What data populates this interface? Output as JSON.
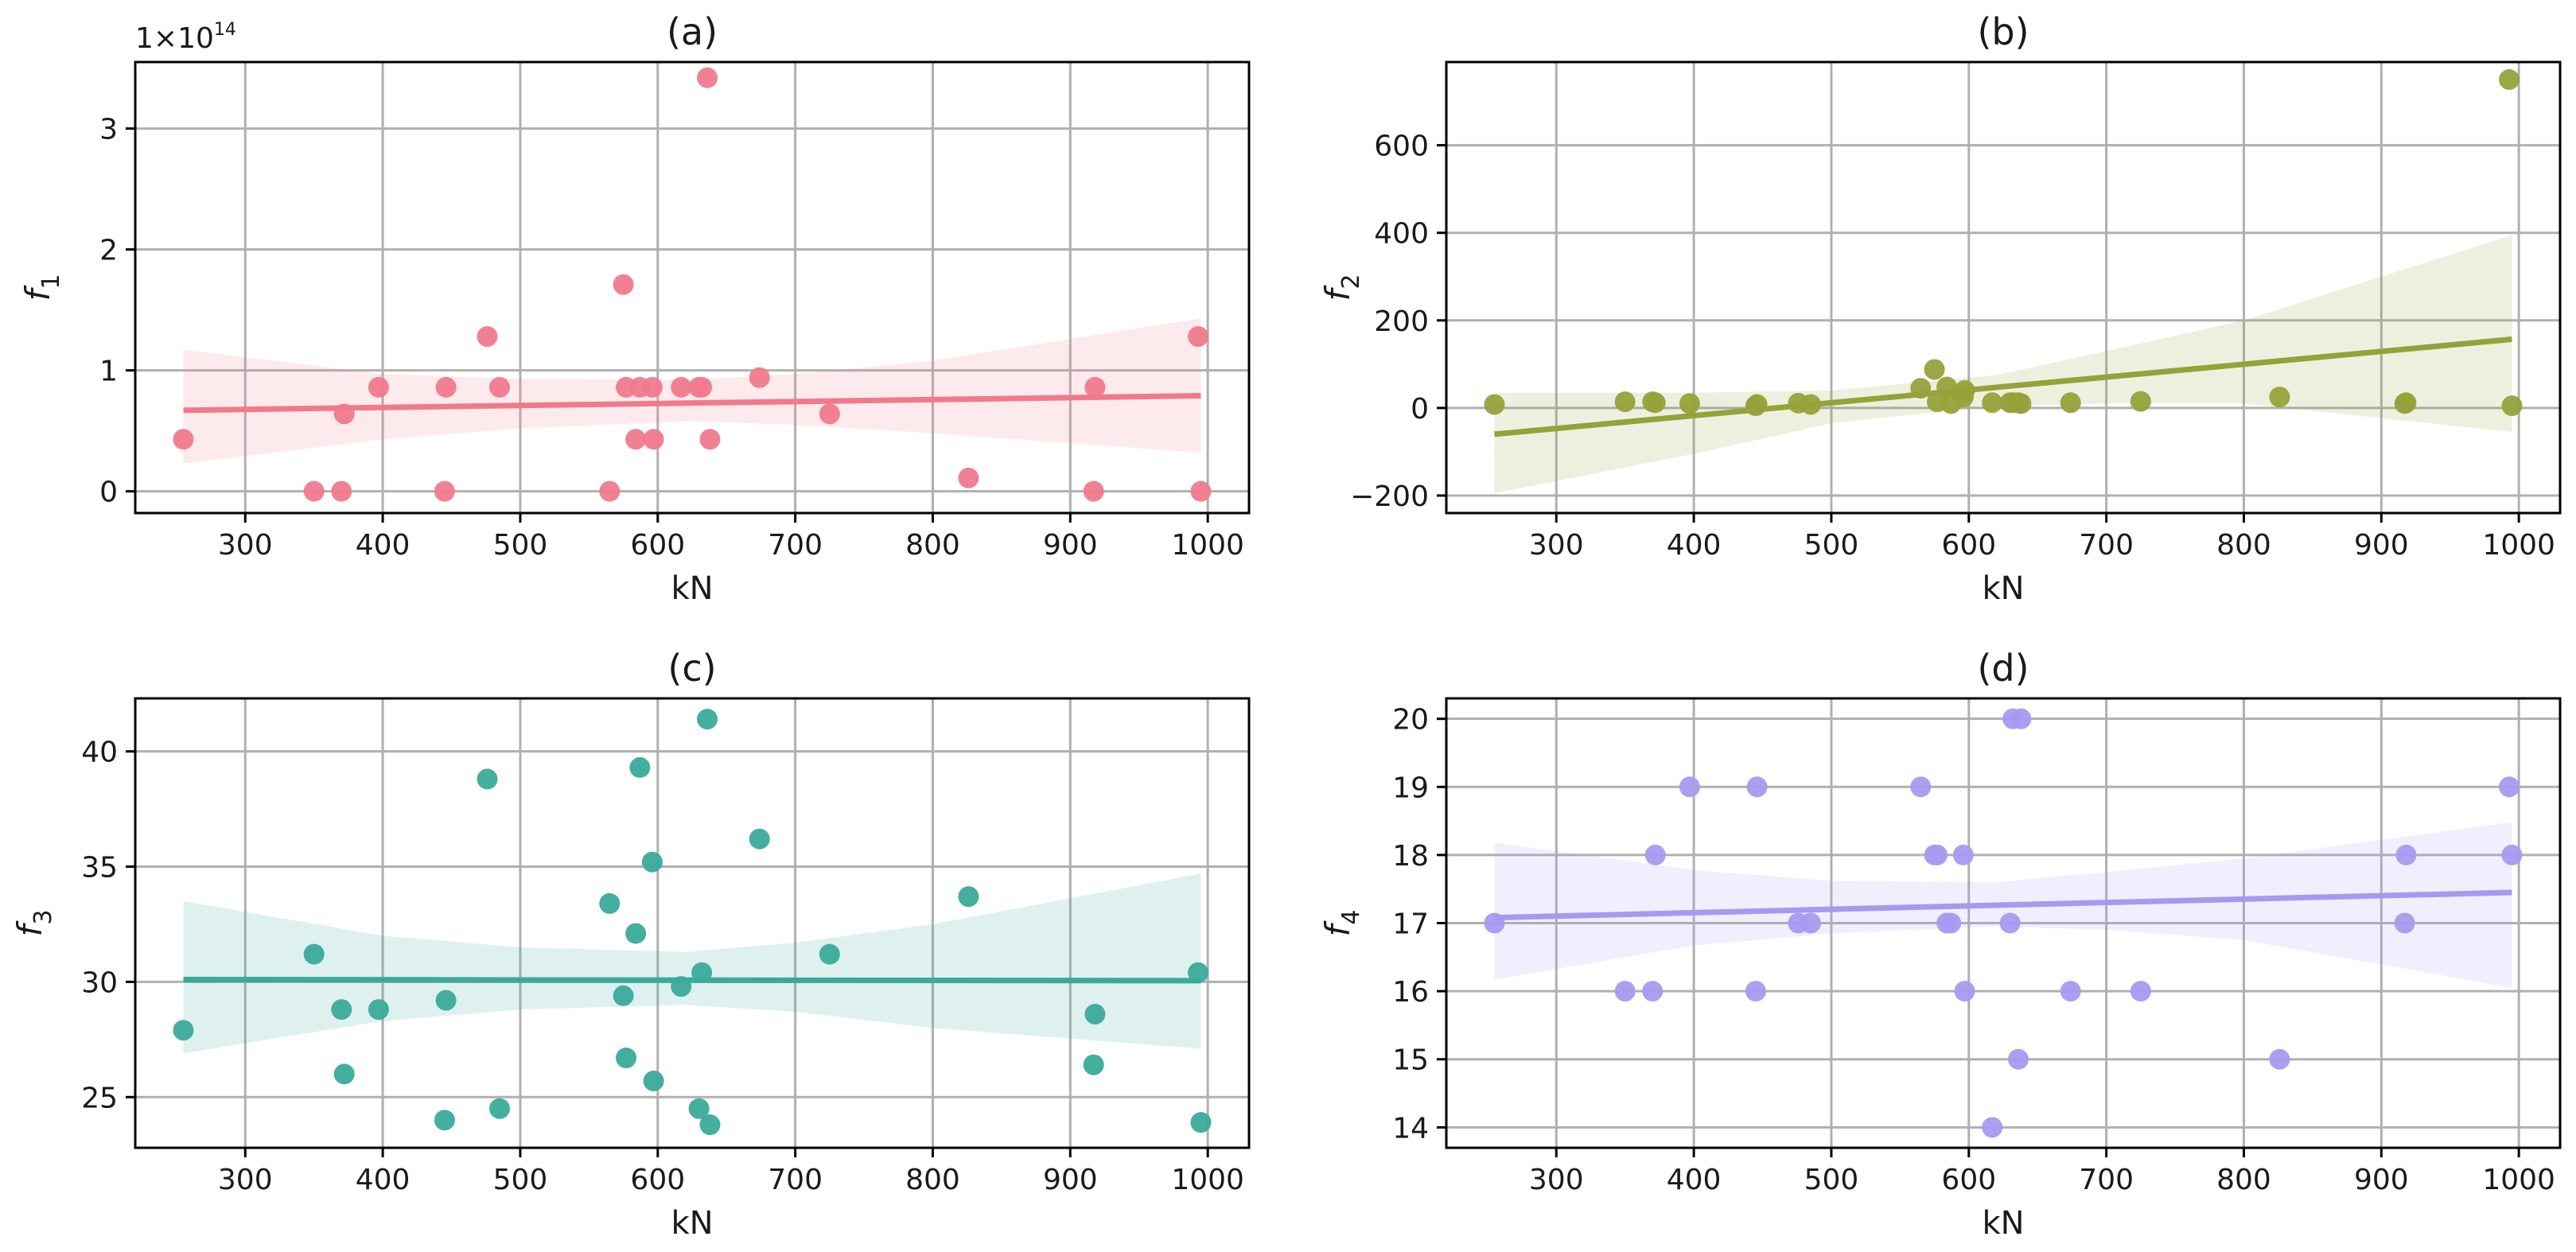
{
  "chart_data": [
    {
      "type": "scatter",
      "title": "(a)",
      "xlabel": "kN",
      "ylabel_var": "f",
      "ylabel_sub": "1",
      "offset_text": "1×10",
      "offset_exp": "14",
      "xlim": [
        220,
        1030
      ],
      "ylim": [
        -0.18,
        3.55
      ],
      "xticks": [
        300,
        400,
        500,
        600,
        700,
        800,
        900,
        1000
      ],
      "yticks": [
        0,
        1,
        2,
        3
      ],
      "color": "#f07a8c",
      "fit": {
        "x": [
          255,
          995
        ],
        "y": [
          0.67,
          0.79
        ]
      },
      "band": {
        "x": [
          255,
          400,
          500,
          620,
          700,
          800,
          995
        ],
        "upper": [
          1.17,
          0.97,
          0.93,
          0.92,
          0.97,
          1.08,
          1.43
        ],
        "lower": [
          0.23,
          0.43,
          0.52,
          0.58,
          0.55,
          0.48,
          0.32
        ]
      },
      "points": [
        {
          "x": 255,
          "y": 0.43
        },
        {
          "x": 350,
          "y": 0.0
        },
        {
          "x": 370,
          "y": 0.0
        },
        {
          "x": 372,
          "y": 0.64
        },
        {
          "x": 397,
          "y": 0.86
        },
        {
          "x": 445,
          "y": 0.0
        },
        {
          "x": 446,
          "y": 0.86
        },
        {
          "x": 476,
          "y": 1.28
        },
        {
          "x": 485,
          "y": 0.86
        },
        {
          "x": 565,
          "y": 0.0
        },
        {
          "x": 575,
          "y": 1.71
        },
        {
          "x": 577,
          "y": 0.86
        },
        {
          "x": 584,
          "y": 0.43
        },
        {
          "x": 587,
          "y": 0.86
        },
        {
          "x": 596,
          "y": 0.86
        },
        {
          "x": 597,
          "y": 0.43
        },
        {
          "x": 617,
          "y": 0.86
        },
        {
          "x": 630,
          "y": 0.86
        },
        {
          "x": 632,
          "y": 0.86
        },
        {
          "x": 636,
          "y": 3.42
        },
        {
          "x": 638,
          "y": 0.43
        },
        {
          "x": 674,
          "y": 0.94
        },
        {
          "x": 725,
          "y": 0.64
        },
        {
          "x": 826,
          "y": 0.11
        },
        {
          "x": 917,
          "y": 0.0
        },
        {
          "x": 918,
          "y": 0.86
        },
        {
          "x": 993,
          "y": 1.28
        },
        {
          "x": 995,
          "y": 0.0
        }
      ]
    },
    {
      "type": "scatter",
      "title": "(b)",
      "xlabel": "kN",
      "ylabel_var": "f",
      "ylabel_sub": "2",
      "xlim": [
        220,
        1030
      ],
      "ylim": [
        -240,
        790
      ],
      "xticks": [
        300,
        400,
        500,
        600,
        700,
        800,
        900,
        1000
      ],
      "yticks": [
        -200,
        0,
        200,
        400,
        600
      ],
      "color": "#95a23a",
      "fit": {
        "x": [
          255,
          995
        ],
        "y": [
          -60,
          157
        ]
      },
      "band": {
        "x": [
          255,
          400,
          500,
          620,
          700,
          800,
          995
        ],
        "upper": [
          35,
          35,
          40,
          75,
          130,
          200,
          395
        ],
        "lower": [
          -195,
          -105,
          -35,
          5,
          10,
          10,
          -55
        ]
      },
      "points": [
        {
          "x": 255,
          "y": 8
        },
        {
          "x": 350,
          "y": 14
        },
        {
          "x": 370,
          "y": 14
        },
        {
          "x": 372,
          "y": 12
        },
        {
          "x": 397,
          "y": 10
        },
        {
          "x": 445,
          "y": 5
        },
        {
          "x": 446,
          "y": 8
        },
        {
          "x": 476,
          "y": 11
        },
        {
          "x": 485,
          "y": 8
        },
        {
          "x": 565,
          "y": 45
        },
        {
          "x": 575,
          "y": 88
        },
        {
          "x": 577,
          "y": 14
        },
        {
          "x": 584,
          "y": 48
        },
        {
          "x": 587,
          "y": 10
        },
        {
          "x": 596,
          "y": 25
        },
        {
          "x": 597,
          "y": 40
        },
        {
          "x": 617,
          "y": 12
        },
        {
          "x": 630,
          "y": 12
        },
        {
          "x": 632,
          "y": 12
        },
        {
          "x": 636,
          "y": 12
        },
        {
          "x": 638,
          "y": 10
        },
        {
          "x": 674,
          "y": 12
        },
        {
          "x": 725,
          "y": 15
        },
        {
          "x": 826,
          "y": 25
        },
        {
          "x": 917,
          "y": 10
        },
        {
          "x": 918,
          "y": 12
        },
        {
          "x": 993,
          "y": 750
        },
        {
          "x": 995,
          "y": 5
        }
      ]
    },
    {
      "type": "scatter",
      "title": "(c)",
      "xlabel": "kN",
      "ylabel_var": "f",
      "ylabel_sub": "3",
      "xlim": [
        220,
        1030
      ],
      "ylim": [
        22.8,
        42.3
      ],
      "xticks": [
        300,
        400,
        500,
        600,
        700,
        800,
        900,
        1000
      ],
      "yticks": [
        25,
        30,
        35,
        40
      ],
      "color": "#3aaa9a",
      "fit": {
        "x": [
          255,
          995
        ],
        "y": [
          30.1,
          30.05
        ]
      },
      "band": {
        "x": [
          255,
          400,
          500,
          620,
          700,
          800,
          995
        ],
        "upper": [
          33.5,
          32.0,
          31.5,
          31.3,
          31.7,
          32.5,
          34.7
        ],
        "lower": [
          26.9,
          28.3,
          28.8,
          29.0,
          28.7,
          28.0,
          27.1
        ]
      },
      "points": [
        {
          "x": 255,
          "y": 27.9
        },
        {
          "x": 350,
          "y": 31.2
        },
        {
          "x": 370,
          "y": 28.8
        },
        {
          "x": 372,
          "y": 26.0
        },
        {
          "x": 397,
          "y": 28.8
        },
        {
          "x": 445,
          "y": 24.0
        },
        {
          "x": 446,
          "y": 29.2
        },
        {
          "x": 476,
          "y": 38.8
        },
        {
          "x": 485,
          "y": 24.5
        },
        {
          "x": 565,
          "y": 33.4
        },
        {
          "x": 575,
          "y": 29.4
        },
        {
          "x": 577,
          "y": 26.7
        },
        {
          "x": 584,
          "y": 32.1
        },
        {
          "x": 587,
          "y": 39.3
        },
        {
          "x": 596,
          "y": 35.2
        },
        {
          "x": 597,
          "y": 25.7
        },
        {
          "x": 617,
          "y": 29.8
        },
        {
          "x": 630,
          "y": 24.5
        },
        {
          "x": 632,
          "y": 30.4
        },
        {
          "x": 636,
          "y": 41.4
        },
        {
          "x": 638,
          "y": 23.8
        },
        {
          "x": 674,
          "y": 36.2
        },
        {
          "x": 725,
          "y": 31.2
        },
        {
          "x": 826,
          "y": 33.7
        },
        {
          "x": 917,
          "y": 26.4
        },
        {
          "x": 918,
          "y": 28.6
        },
        {
          "x": 993,
          "y": 30.4
        },
        {
          "x": 995,
          "y": 23.9
        }
      ]
    },
    {
      "type": "scatter",
      "title": "(d)",
      "xlabel": "kN",
      "ylabel_var": "f",
      "ylabel_sub": "4",
      "xlim": [
        220,
        1030
      ],
      "ylim": [
        13.7,
        20.3
      ],
      "xticks": [
        300,
        400,
        500,
        600,
        700,
        800,
        900,
        1000
      ],
      "yticks": [
        14,
        15,
        16,
        17,
        18,
        19,
        20
      ],
      "color": "#a69af0",
      "fit": {
        "x": [
          255,
          995
        ],
        "y": [
          17.08,
          17.45
        ]
      },
      "band": {
        "x": [
          255,
          400,
          500,
          620,
          700,
          800,
          995
        ],
        "upper": [
          18.18,
          17.78,
          17.62,
          17.6,
          17.75,
          17.95,
          18.48
        ],
        "lower": [
          16.17,
          16.67,
          16.85,
          16.95,
          16.9,
          16.75,
          16.05
        ]
      },
      "points": [
        {
          "x": 255,
          "y": 17
        },
        {
          "x": 350,
          "y": 16
        },
        {
          "x": 370,
          "y": 16
        },
        {
          "x": 372,
          "y": 18
        },
        {
          "x": 397,
          "y": 19
        },
        {
          "x": 445,
          "y": 16
        },
        {
          "x": 446,
          "y": 19
        },
        {
          "x": 476,
          "y": 17
        },
        {
          "x": 485,
          "y": 17
        },
        {
          "x": 565,
          "y": 19
        },
        {
          "x": 575,
          "y": 18
        },
        {
          "x": 577,
          "y": 18
        },
        {
          "x": 584,
          "y": 17
        },
        {
          "x": 587,
          "y": 17
        },
        {
          "x": 596,
          "y": 18
        },
        {
          "x": 597,
          "y": 16
        },
        {
          "x": 617,
          "y": 14
        },
        {
          "x": 630,
          "y": 17
        },
        {
          "x": 632,
          "y": 20
        },
        {
          "x": 636,
          "y": 15
        },
        {
          "x": 638,
          "y": 20
        },
        {
          "x": 674,
          "y": 16
        },
        {
          "x": 725,
          "y": 16
        },
        {
          "x": 826,
          "y": 15
        },
        {
          "x": 917,
          "y": 17
        },
        {
          "x": 918,
          "y": 18
        },
        {
          "x": 993,
          "y": 19
        },
        {
          "x": 995,
          "y": 18
        }
      ]
    }
  ]
}
